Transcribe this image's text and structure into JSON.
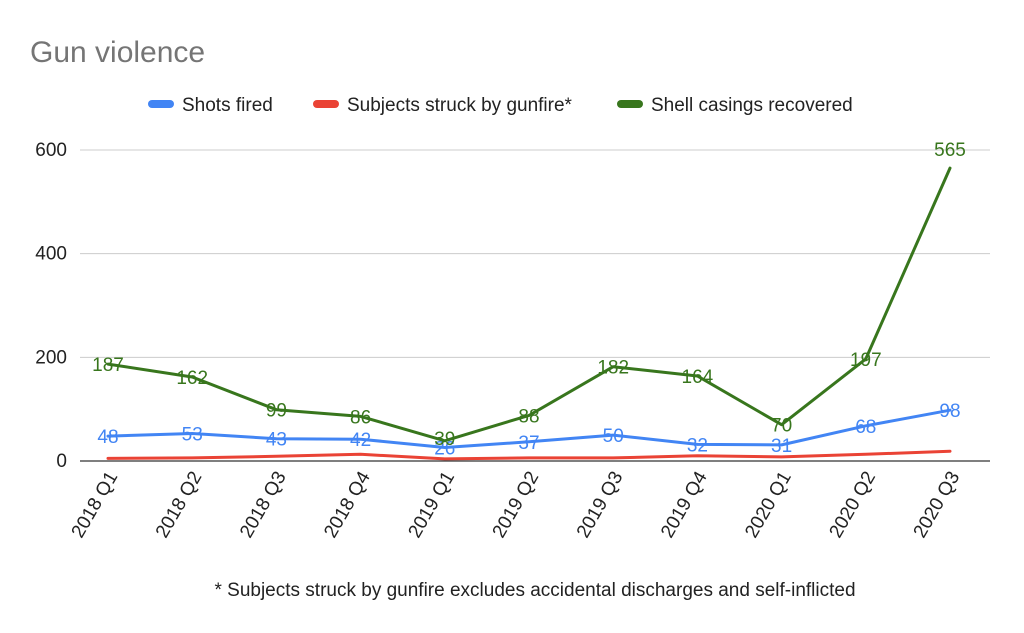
{
  "chart_data": {
    "type": "line",
    "title": "Gun violence",
    "xlabel": "",
    "ylabel": "",
    "ylim": [
      0,
      600
    ],
    "yticks": [
      0,
      200,
      400,
      600
    ],
    "grid": true,
    "legend_position": "top",
    "categories": [
      "2018 Q1",
      "2018 Q2",
      "2018 Q3",
      "2018 Q4",
      "2019 Q1",
      "2019 Q2",
      "2019 Q3",
      "2019 Q4",
      "2020 Q1",
      "2020 Q2",
      "2020 Q3"
    ],
    "series": [
      {
        "name": "Shots fired",
        "color": "#4285f4",
        "show_labels": true,
        "values": [
          48,
          53,
          43,
          42,
          26,
          37,
          50,
          32,
          31,
          68,
          98
        ]
      },
      {
        "name": "Subjects struck by gunfire*",
        "color": "#ea4335",
        "show_labels": false,
        "values": [
          5,
          6,
          9,
          13,
          4,
          6,
          6,
          10,
          8,
          13,
          19
        ]
      },
      {
        "name": "Shell casings recovered",
        "color": "#38761d",
        "show_labels": true,
        "values": [
          187,
          162,
          99,
          86,
          39,
          88,
          182,
          164,
          70,
          197,
          565
        ]
      }
    ],
    "footnote": "* Subjects struck by gunfire excludes accidental discharges and self-inflicted"
  }
}
